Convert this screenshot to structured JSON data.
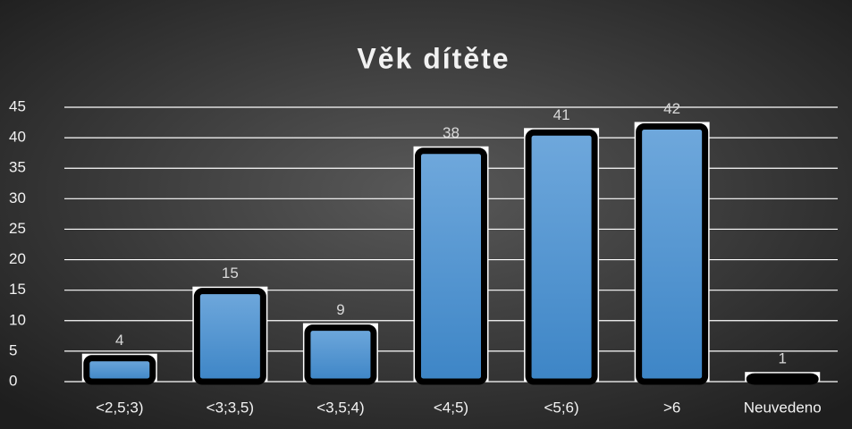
{
  "chart_data": {
    "type": "bar",
    "title": "Věk dítěte",
    "categories": [
      "<2,5;3)",
      "<3;3,5)",
      "<3,5;4)",
      "<4;5)",
      "<5;6)",
      ">6",
      "Neuvedeno"
    ],
    "values": [
      4,
      15,
      9,
      38,
      41,
      42,
      1
    ],
    "color": "#5b9bd5",
    "ylim": [
      0,
      45
    ],
    "yticks": [
      0,
      5,
      10,
      15,
      20,
      25,
      30,
      35,
      40,
      45
    ],
    "grid": true
  }
}
